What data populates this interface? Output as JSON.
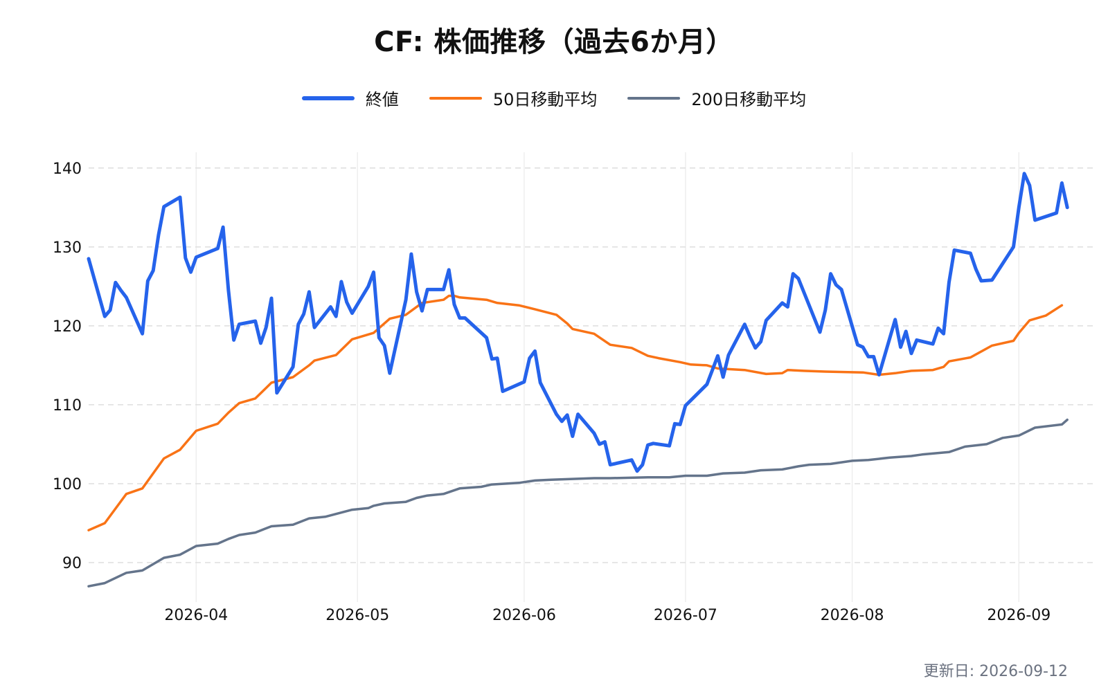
{
  "title": "CF: 株価推移（過去6か月）",
  "updated_text": "更新日: 2026-09-12",
  "colors": {
    "close": "#2563eb",
    "ma50": "#f97316",
    "ma200": "#64748b",
    "grid": "#dddddd"
  },
  "chart_data": {
    "type": "line",
    "title": "CF: 株価推移（過去6か月）",
    "xlabel": "",
    "ylabel": "",
    "xlim": [
      "2026-03-12",
      "2026-09-15"
    ],
    "ylim": [
      85,
      142
    ],
    "x_ticks": [
      "2026-04",
      "2026-05",
      "2026-06",
      "2026-07",
      "2026-08",
      "2026-09"
    ],
    "y_ticks": [
      90,
      100,
      110,
      120,
      130,
      140
    ],
    "grid": true,
    "legend_position": "top-center",
    "series": [
      {
        "name": "終値",
        "color": "#2563eb",
        "width": 5,
        "points": [
          [
            "2026-03-12",
            128.5
          ],
          [
            "2026-03-15",
            121.2
          ],
          [
            "2026-03-16",
            122.0
          ],
          [
            "2026-03-17",
            125.5
          ],
          [
            "2026-03-18",
            124.5
          ],
          [
            "2026-03-19",
            123.6
          ],
          [
            "2026-03-22",
            119.0
          ],
          [
            "2026-03-23",
            125.7
          ],
          [
            "2026-03-24",
            127.0
          ],
          [
            "2026-03-25",
            131.5
          ],
          [
            "2026-03-26",
            135.1
          ],
          [
            "2026-03-29",
            136.3
          ],
          [
            "2026-03-30",
            128.6
          ],
          [
            "2026-03-31",
            126.8
          ],
          [
            "2026-04-01",
            128.7
          ],
          [
            "2026-04-05",
            129.8
          ],
          [
            "2026-04-06",
            132.5
          ],
          [
            "2026-04-07",
            124.5
          ],
          [
            "2026-04-08",
            118.2
          ],
          [
            "2026-04-09",
            120.2
          ],
          [
            "2026-04-12",
            120.6
          ],
          [
            "2026-04-13",
            117.8
          ],
          [
            "2026-04-14",
            119.8
          ],
          [
            "2026-04-15",
            123.5
          ],
          [
            "2026-04-16",
            111.5
          ],
          [
            "2026-04-19",
            114.8
          ],
          [
            "2026-04-20",
            120.2
          ],
          [
            "2026-04-21",
            121.5
          ],
          [
            "2026-04-22",
            124.3
          ],
          [
            "2026-04-23",
            119.8
          ],
          [
            "2026-04-26",
            122.4
          ],
          [
            "2026-04-27",
            121.2
          ],
          [
            "2026-04-28",
            125.6
          ],
          [
            "2026-04-29",
            123.0
          ],
          [
            "2026-04-30",
            121.6
          ],
          [
            "2026-05-03",
            125.0
          ],
          [
            "2026-05-04",
            126.8
          ],
          [
            "2026-05-05",
            118.5
          ],
          [
            "2026-05-06",
            117.5
          ],
          [
            "2026-05-07",
            114.0
          ],
          [
            "2026-05-10",
            123.3
          ],
          [
            "2026-05-11",
            129.1
          ],
          [
            "2026-05-12",
            124.3
          ],
          [
            "2026-05-13",
            121.9
          ],
          [
            "2026-05-14",
            124.6
          ],
          [
            "2026-05-17",
            124.6
          ],
          [
            "2026-05-18",
            127.1
          ],
          [
            "2026-05-19",
            122.7
          ],
          [
            "2026-05-20",
            121.0
          ],
          [
            "2026-05-21",
            121.0
          ],
          [
            "2026-05-25",
            118.5
          ],
          [
            "2026-05-26",
            115.8
          ],
          [
            "2026-05-27",
            115.9
          ],
          [
            "2026-05-28",
            111.7
          ],
          [
            "2026-06-01",
            112.9
          ],
          [
            "2026-06-02",
            115.9
          ],
          [
            "2026-06-03",
            116.8
          ],
          [
            "2026-06-04",
            112.8
          ],
          [
            "2026-06-07",
            108.8
          ],
          [
            "2026-06-08",
            107.9
          ],
          [
            "2026-06-09",
            108.7
          ],
          [
            "2026-06-10",
            106.0
          ],
          [
            "2026-06-11",
            108.8
          ],
          [
            "2026-06-14",
            106.4
          ],
          [
            "2026-06-15",
            105.0
          ],
          [
            "2026-06-16",
            105.3
          ],
          [
            "2026-06-17",
            102.4
          ],
          [
            "2026-06-21",
            103.0
          ],
          [
            "2026-06-22",
            101.6
          ],
          [
            "2026-06-23",
            102.4
          ],
          [
            "2026-06-24",
            104.9
          ],
          [
            "2026-06-25",
            105.1
          ],
          [
            "2026-06-28",
            104.8
          ],
          [
            "2026-06-29",
            107.6
          ],
          [
            "2026-06-30",
            107.5
          ],
          [
            "2026-07-01",
            109.9
          ],
          [
            "2026-07-05",
            112.6
          ],
          [
            "2026-07-06",
            114.4
          ],
          [
            "2026-07-07",
            116.2
          ],
          [
            "2026-07-08",
            113.5
          ],
          [
            "2026-07-09",
            116.3
          ],
          [
            "2026-07-12",
            120.2
          ],
          [
            "2026-07-13",
            118.6
          ],
          [
            "2026-07-14",
            117.2
          ],
          [
            "2026-07-15",
            118.0
          ],
          [
            "2026-07-16",
            120.7
          ],
          [
            "2026-07-19",
            122.9
          ],
          [
            "2026-07-20",
            122.4
          ],
          [
            "2026-07-21",
            126.6
          ],
          [
            "2026-07-22",
            126.0
          ],
          [
            "2026-07-26",
            119.2
          ],
          [
            "2026-07-27",
            122.0
          ],
          [
            "2026-07-28",
            126.6
          ],
          [
            "2026-07-29",
            125.2
          ],
          [
            "2026-07-30",
            124.6
          ],
          [
            "2026-08-02",
            117.6
          ],
          [
            "2026-08-03",
            117.3
          ],
          [
            "2026-08-04",
            116.1
          ],
          [
            "2026-08-05",
            116.1
          ],
          [
            "2026-08-06",
            113.8
          ],
          [
            "2026-08-09",
            120.8
          ],
          [
            "2026-08-10",
            117.3
          ],
          [
            "2026-08-11",
            119.3
          ],
          [
            "2026-08-12",
            116.5
          ],
          [
            "2026-08-13",
            118.2
          ],
          [
            "2026-08-16",
            117.7
          ],
          [
            "2026-08-17",
            119.7
          ],
          [
            "2026-08-18",
            119.0
          ],
          [
            "2026-08-19",
            125.5
          ],
          [
            "2026-08-20",
            129.6
          ],
          [
            "2026-08-23",
            129.2
          ],
          [
            "2026-08-24",
            127.2
          ],
          [
            "2026-08-25",
            125.7
          ],
          [
            "2026-08-27",
            125.8
          ],
          [
            "2026-08-31",
            130.0
          ],
          [
            "2026-09-01",
            135.0
          ],
          [
            "2026-09-02",
            139.3
          ],
          [
            "2026-09-03",
            137.8
          ],
          [
            "2026-09-04",
            133.4
          ],
          [
            "2026-09-08",
            134.3
          ],
          [
            "2026-09-09",
            138.1
          ],
          [
            "2026-09-10",
            135.0
          ]
        ]
      },
      {
        "name": "50日移動平均",
        "color": "#f97316",
        "width": 3.5,
        "points": [
          [
            "2026-03-12",
            94.1
          ],
          [
            "2026-03-15",
            95.0
          ],
          [
            "2026-03-19",
            98.7
          ],
          [
            "2026-03-22",
            99.4
          ],
          [
            "2026-03-26",
            103.2
          ],
          [
            "2026-03-29",
            104.3
          ],
          [
            "2026-04-01",
            106.7
          ],
          [
            "2026-04-05",
            107.6
          ],
          [
            "2026-04-07",
            109.0
          ],
          [
            "2026-04-09",
            110.2
          ],
          [
            "2026-04-12",
            110.8
          ],
          [
            "2026-04-15",
            112.8
          ],
          [
            "2026-04-19",
            113.5
          ],
          [
            "2026-04-22",
            115.0
          ],
          [
            "2026-04-23",
            115.6
          ],
          [
            "2026-04-27",
            116.3
          ],
          [
            "2026-04-30",
            118.3
          ],
          [
            "2026-05-04",
            119.1
          ],
          [
            "2026-05-07",
            120.9
          ],
          [
            "2026-05-10",
            121.4
          ],
          [
            "2026-05-13",
            122.9
          ],
          [
            "2026-05-17",
            123.3
          ],
          [
            "2026-05-18",
            123.8
          ],
          [
            "2026-05-19",
            123.8
          ],
          [
            "2026-05-20",
            123.6
          ],
          [
            "2026-05-25",
            123.3
          ],
          [
            "2026-05-27",
            122.9
          ],
          [
            "2026-05-31",
            122.6
          ],
          [
            "2026-06-03",
            122.1
          ],
          [
            "2026-06-07",
            121.4
          ],
          [
            "2026-06-09",
            120.3
          ],
          [
            "2026-06-10",
            119.6
          ],
          [
            "2026-06-14",
            119.0
          ],
          [
            "2026-06-17",
            117.6
          ],
          [
            "2026-06-21",
            117.2
          ],
          [
            "2026-06-24",
            116.2
          ],
          [
            "2026-06-26",
            115.9
          ],
          [
            "2026-06-30",
            115.4
          ],
          [
            "2026-07-02",
            115.1
          ],
          [
            "2026-07-05",
            115.0
          ],
          [
            "2026-07-07",
            114.6
          ],
          [
            "2026-07-12",
            114.4
          ],
          [
            "2026-07-16",
            113.9
          ],
          [
            "2026-07-19",
            114.0
          ],
          [
            "2026-07-20",
            114.4
          ],
          [
            "2026-07-23",
            114.3
          ],
          [
            "2026-07-27",
            114.2
          ],
          [
            "2026-08-03",
            114.1
          ],
          [
            "2026-08-06",
            113.8
          ],
          [
            "2026-08-09",
            114.0
          ],
          [
            "2026-08-12",
            114.3
          ],
          [
            "2026-08-16",
            114.4
          ],
          [
            "2026-08-18",
            114.8
          ],
          [
            "2026-08-19",
            115.5
          ],
          [
            "2026-08-23",
            116.0
          ],
          [
            "2026-08-27",
            117.5
          ],
          [
            "2026-08-31",
            118.1
          ],
          [
            "2026-09-01",
            119.1
          ],
          [
            "2026-09-03",
            120.7
          ],
          [
            "2026-09-06",
            121.3
          ],
          [
            "2026-09-09",
            122.6
          ]
        ]
      },
      {
        "name": "200日移動平均",
        "color": "#64748b",
        "width": 3.5,
        "points": [
          [
            "2026-03-12",
            87.0
          ],
          [
            "2026-03-15",
            87.4
          ],
          [
            "2026-03-19",
            88.7
          ],
          [
            "2026-03-22",
            89.0
          ],
          [
            "2026-03-26",
            90.6
          ],
          [
            "2026-03-29",
            91.0
          ],
          [
            "2026-04-01",
            92.1
          ],
          [
            "2026-04-05",
            92.4
          ],
          [
            "2026-04-07",
            93.0
          ],
          [
            "2026-04-09",
            93.5
          ],
          [
            "2026-04-12",
            93.8
          ],
          [
            "2026-04-15",
            94.6
          ],
          [
            "2026-04-19",
            94.8
          ],
          [
            "2026-04-22",
            95.6
          ],
          [
            "2026-04-25",
            95.8
          ],
          [
            "2026-04-30",
            96.7
          ],
          [
            "2026-05-03",
            96.9
          ],
          [
            "2026-05-04",
            97.2
          ],
          [
            "2026-05-06",
            97.5
          ],
          [
            "2026-05-10",
            97.7
          ],
          [
            "2026-05-12",
            98.2
          ],
          [
            "2026-05-14",
            98.5
          ],
          [
            "2026-05-17",
            98.7
          ],
          [
            "2026-05-20",
            99.4
          ],
          [
            "2026-05-24",
            99.6
          ],
          [
            "2026-05-26",
            99.9
          ],
          [
            "2026-05-31",
            100.1
          ],
          [
            "2026-06-03",
            100.4
          ],
          [
            "2026-06-06",
            100.5
          ],
          [
            "2026-06-10",
            100.6
          ],
          [
            "2026-06-14",
            100.7
          ],
          [
            "2026-06-17",
            100.7
          ],
          [
            "2026-06-24",
            100.8
          ],
          [
            "2026-06-28",
            100.8
          ],
          [
            "2026-07-01",
            101.0
          ],
          [
            "2026-07-05",
            101.0
          ],
          [
            "2026-07-08",
            101.3
          ],
          [
            "2026-07-12",
            101.4
          ],
          [
            "2026-07-15",
            101.7
          ],
          [
            "2026-07-19",
            101.8
          ],
          [
            "2026-07-22",
            102.2
          ],
          [
            "2026-07-24",
            102.4
          ],
          [
            "2026-07-28",
            102.5
          ],
          [
            "2026-08-01",
            102.9
          ],
          [
            "2026-08-04",
            103.0
          ],
          [
            "2026-08-08",
            103.3
          ],
          [
            "2026-08-12",
            103.5
          ],
          [
            "2026-08-14",
            103.7
          ],
          [
            "2026-08-19",
            104.0
          ],
          [
            "2026-08-22",
            104.7
          ],
          [
            "2026-08-26",
            105.0
          ],
          [
            "2026-08-29",
            105.8
          ],
          [
            "2026-09-01",
            106.1
          ],
          [
            "2026-09-04",
            107.1
          ],
          [
            "2026-09-09",
            107.5
          ],
          [
            "2026-09-10",
            108.1
          ]
        ]
      }
    ]
  }
}
